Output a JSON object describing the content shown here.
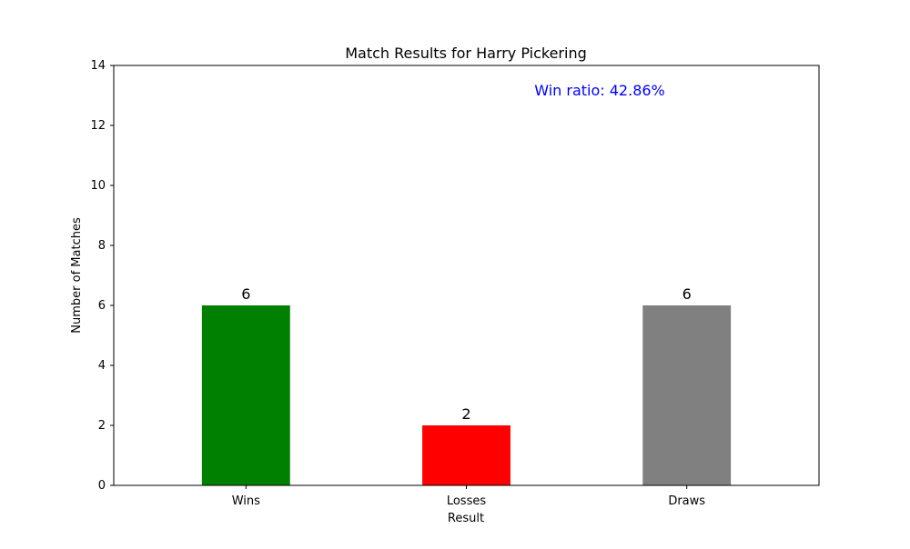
{
  "chart_data": {
    "type": "bar",
    "title": "Match Results for Harry Pickering",
    "xlabel": "Result",
    "ylabel": "Number of Matches",
    "categories": [
      "Wins",
      "Losses",
      "Draws"
    ],
    "values": [
      6,
      2,
      6
    ],
    "colors": [
      "#008000",
      "#ff0000",
      "#808080"
    ],
    "data_labels": [
      "6",
      "2",
      "6"
    ],
    "ylim": [
      0,
      14
    ],
    "yticks": [
      0,
      2,
      4,
      6,
      8,
      10,
      12,
      14
    ],
    "ytick_labels": [
      "0",
      "2",
      "4",
      "6",
      "8",
      "10",
      "12",
      "14"
    ],
    "grid": false,
    "legend": "none",
    "annotation": {
      "text": "Win ratio: 42.86%",
      "color": "#0000ff"
    }
  }
}
